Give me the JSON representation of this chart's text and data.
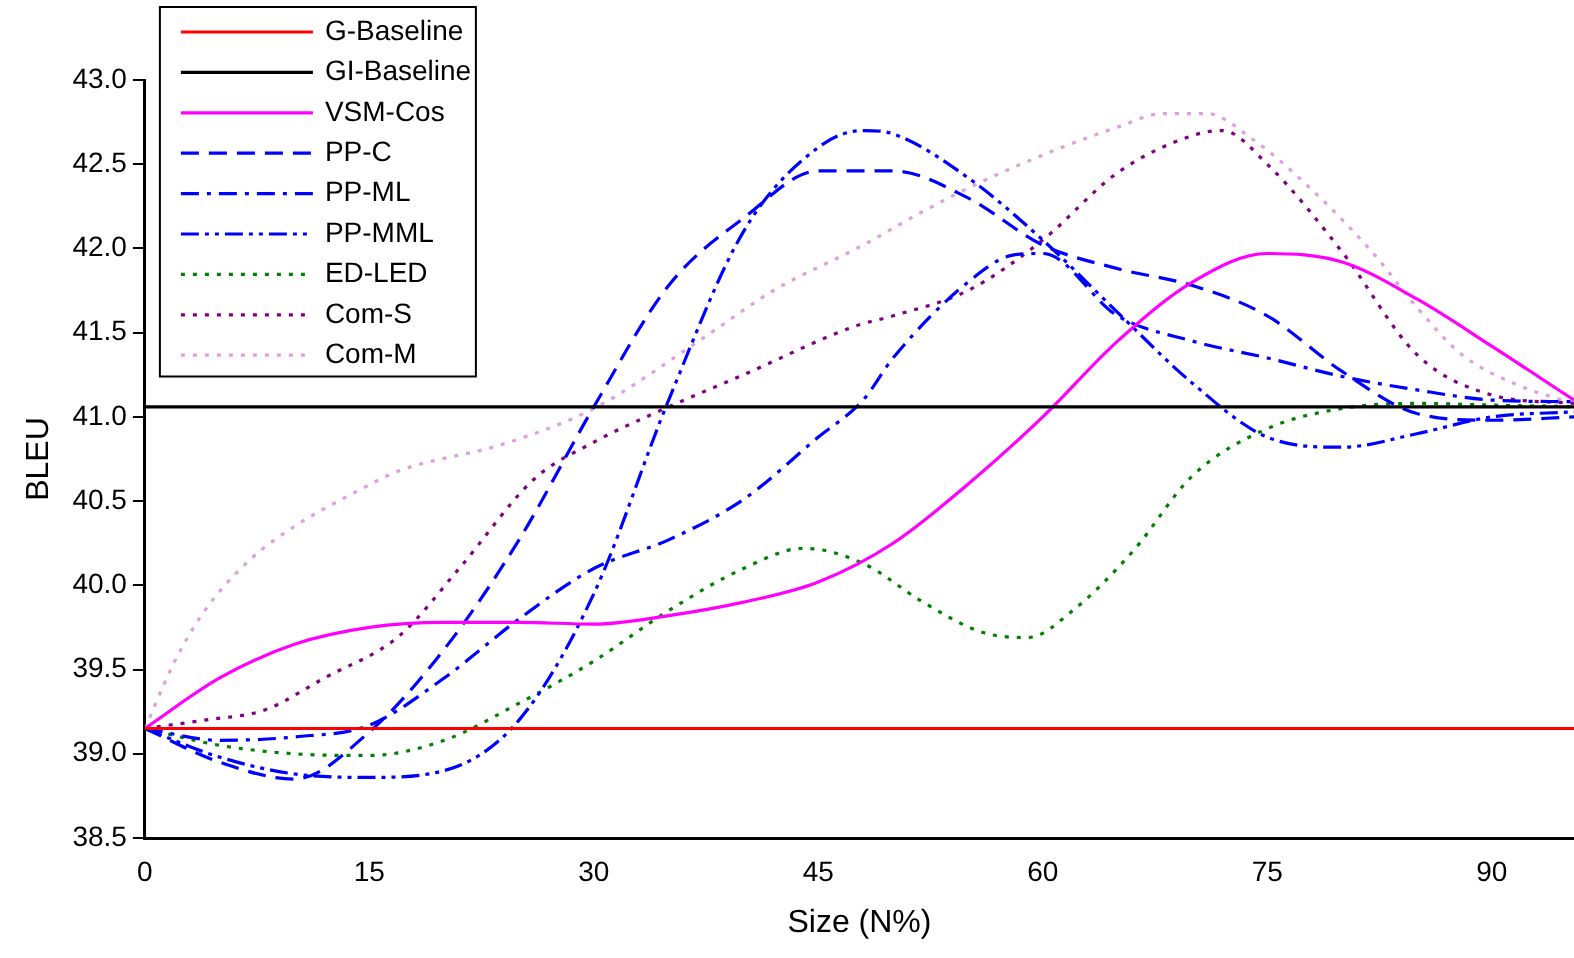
{
  "chart_data": {
    "type": "line",
    "xlabel": "Size (N%)",
    "ylabel": "BLEU",
    "xlim": [
      0,
      95.5
    ],
    "xticks": [
      0,
      15,
      30,
      45,
      60,
      75,
      90
    ],
    "ylim": [
      38.5,
      43.0
    ],
    "yticks": [
      {
        "value": 38.5,
        "label": "38.5"
      },
      {
        "value": 39,
        "label": "39.0"
      },
      {
        "value": 39.5,
        "label": "39.5"
      },
      {
        "value": 40,
        "label": "40.0"
      },
      {
        "value": 40.5,
        "label": "40.5"
      },
      {
        "value": 41,
        "label": "41.0"
      },
      {
        "value": 41.5,
        "label": "41.5"
      },
      {
        "value": 42,
        "label": "42.0"
      },
      {
        "value": 42.5,
        "label": "42.5"
      },
      {
        "value": 43,
        "label": "43.0"
      }
    ],
    "grid": false,
    "legend": "top left",
    "marker": "none",
    "series": [
      {
        "name": "G-Baseline",
        "color": "#ff0000",
        "line_style": "solid",
        "x": [
          0,
          95.5
        ],
        "values": [
          39.15,
          39.15
        ]
      },
      {
        "name": "GI-Baseline",
        "color": "#000000",
        "line_style": "solid",
        "x": [
          0,
          95.5
        ],
        "values": [
          41.06,
          41.06
        ]
      },
      {
        "name": "VSM-Cos",
        "color": "#ff00ff",
        "line_style": "solid",
        "x": [
          0,
          5,
          10,
          15,
          20,
          25,
          30,
          35,
          40,
          45,
          50,
          55,
          60,
          65,
          70,
          75,
          80,
          85,
          90,
          95.5
        ],
        "values": [
          39.15,
          39.45,
          39.65,
          39.75,
          39.78,
          39.78,
          39.77,
          39.82,
          39.9,
          40.02,
          40.25,
          40.6,
          41.0,
          41.45,
          41.8,
          41.97,
          41.92,
          41.7,
          41.42,
          41.1
        ]
      },
      {
        "name": "PP-C",
        "color": "#0000ff",
        "line_style": "dashed",
        "x": [
          0,
          5,
          10,
          15,
          20,
          25,
          30,
          35,
          40,
          45,
          50,
          55,
          60,
          65,
          70,
          75,
          80,
          85,
          90,
          95.5
        ],
        "values": [
          39.15,
          38.95,
          38.85,
          39.13,
          39.62,
          40.27,
          41.06,
          41.78,
          42.18,
          42.46,
          42.46,
          42.3,
          42.02,
          41.88,
          41.78,
          41.6,
          41.27,
          41.02,
          40.98,
          41.0
        ]
      },
      {
        "name": "PP-ML",
        "color": "#0000ff",
        "line_style": "dashdot",
        "x": [
          0,
          5,
          10,
          15,
          20,
          25,
          30,
          35,
          40,
          45,
          48,
          50,
          55,
          58,
          60,
          65,
          70,
          75,
          80,
          85,
          90,
          95.5
        ],
        "values": [
          39.15,
          39.08,
          39.1,
          39.17,
          39.45,
          39.8,
          40.1,
          40.27,
          40.51,
          40.88,
          41.1,
          41.35,
          41.8,
          41.96,
          41.97,
          41.6,
          41.45,
          41.35,
          41.24,
          41.16,
          41.1,
          41.09
        ]
      },
      {
        "name": "PP-MML",
        "color": "#0000ff",
        "line_style": "dashdotdot",
        "x": [
          0,
          5,
          10,
          15,
          20,
          25,
          30,
          35,
          40,
          45,
          48,
          50,
          55,
          60,
          65,
          70,
          75,
          80,
          85,
          90,
          95.5
        ],
        "values": [
          39.15,
          38.98,
          38.88,
          38.86,
          38.9,
          39.2,
          39.95,
          41.1,
          42.1,
          42.6,
          42.7,
          42.68,
          42.42,
          42.05,
          41.62,
          41.2,
          40.88,
          40.82,
          40.9,
          41.0,
          41.03
        ]
      },
      {
        "name": "ED-LED",
        "color": "#008000",
        "line_style": "dotted",
        "x": [
          0,
          5,
          10,
          15,
          20,
          25,
          30,
          35,
          40,
          44,
          48,
          52,
          56,
          59,
          62,
          66,
          70,
          75,
          80,
          85,
          90,
          95.5
        ],
        "values": [
          39.15,
          39.05,
          39.0,
          38.99,
          39.08,
          39.3,
          39.55,
          39.85,
          40.1,
          40.22,
          40.13,
          39.9,
          39.72,
          39.69,
          39.85,
          40.2,
          40.65,
          40.93,
          41.05,
          41.08,
          41.07,
          41.06
        ]
      },
      {
        "name": "Com-S",
        "color": "#800080",
        "line_style": "dotted",
        "x": [
          0,
          4,
          8,
          12,
          17,
          21,
          26,
          30,
          34,
          40,
          47.5,
          50,
          55,
          60,
          65,
          70,
          72,
          75,
          80,
          85,
          90,
          95.5
        ],
        "values": [
          39.15,
          39.2,
          39.26,
          39.45,
          39.7,
          40.1,
          40.63,
          40.85,
          41.02,
          41.25,
          41.54,
          41.6,
          41.75,
          42.05,
          42.45,
          42.67,
          42.7,
          42.5,
          41.98,
          41.37,
          41.13,
          41.08
        ]
      },
      {
        "name": "Com-M",
        "color": "#dda0dd",
        "line_style": "dotted",
        "x": [
          0,
          2,
          4,
          7,
          10,
          14,
          17,
          24,
          30,
          37.5,
          42,
          48,
          52,
          56,
          61,
          65,
          68,
          71,
          74,
          77,
          82,
          85,
          88,
          92,
          95.5
        ],
        "values": [
          39.15,
          39.55,
          39.85,
          40.15,
          40.35,
          40.55,
          40.68,
          40.84,
          41.05,
          41.48,
          41.75,
          42.02,
          42.22,
          42.4,
          42.59,
          42.72,
          42.8,
          42.8,
          42.65,
          42.43,
          41.98,
          41.65,
          41.37,
          41.18,
          41.08
        ]
      }
    ]
  }
}
